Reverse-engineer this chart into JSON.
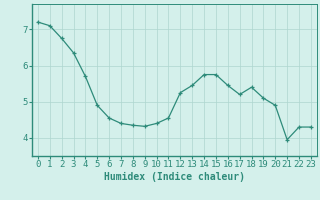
{
  "x": [
    0,
    1,
    2,
    3,
    4,
    5,
    6,
    7,
    8,
    9,
    10,
    11,
    12,
    13,
    14,
    15,
    16,
    17,
    18,
    19,
    20,
    21,
    22,
    23
  ],
  "y": [
    7.2,
    7.1,
    6.75,
    6.35,
    5.7,
    4.9,
    4.55,
    4.4,
    4.35,
    4.32,
    4.4,
    4.55,
    5.25,
    5.45,
    5.75,
    5.75,
    5.45,
    5.2,
    5.4,
    5.1,
    4.9,
    3.95,
    4.3,
    4.3
  ],
  "line_color": "#2e8b7a",
  "marker": "+",
  "marker_size": 3,
  "bg_color": "#d4f0eb",
  "grid_color": "#aed6cf",
  "axis_color": "#2e8b7a",
  "xlabel": "Humidex (Indice chaleur)",
  "ylim": [
    3.5,
    7.7
  ],
  "xlim": [
    -0.5,
    23.5
  ],
  "yticks": [
    4,
    5,
    6,
    7
  ],
  "xticks": [
    0,
    1,
    2,
    3,
    4,
    5,
    6,
    7,
    8,
    9,
    10,
    11,
    12,
    13,
    14,
    15,
    16,
    17,
    18,
    19,
    20,
    21,
    22,
    23
  ],
  "label_fontsize": 7,
  "tick_fontsize": 6.5
}
